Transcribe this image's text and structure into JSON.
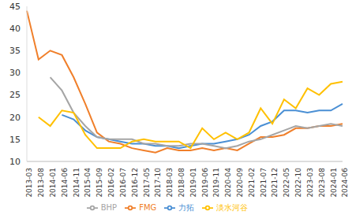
{
  "chart_data": {
    "type": "line",
    "categories": [
      "2013-03",
      "2013-08",
      "2014-01",
      "2014-06",
      "2014-11",
      "2015-04",
      "2015-09",
      "2016-02",
      "2016-07",
      "2016-12",
      "2017-05",
      "2017-10",
      "2018-03",
      "2018-08",
      "2019-01",
      "2019-06",
      "2019-11",
      "2020-04",
      "2020-09",
      "2021-02",
      "2021-07",
      "2021-12",
      "2022-05",
      "2022-10",
      "2023-03",
      "2023-08",
      "2024-01",
      "2024-06"
    ],
    "series": [
      {
        "name": "力拓",
        "color": "#4a8fd4",
        "values": [
          null,
          null,
          null,
          20.5,
          19.5,
          17,
          15.5,
          15,
          14.5,
          14,
          14,
          13.5,
          13.5,
          13,
          13.5,
          14,
          14,
          14.5,
          15,
          16,
          18,
          19,
          21.5,
          21.5,
          21,
          21.5,
          21.5,
          23
        ]
      },
      {
        "name": "FMG",
        "color": "#f07f2a",
        "values": [
          44,
          33,
          35,
          34,
          29,
          23,
          16.5,
          14.5,
          14,
          13,
          12.5,
          12,
          13,
          12.5,
          12.5,
          13,
          12.5,
          13,
          12.5,
          14,
          15.5,
          15.5,
          16,
          17.5,
          17.5,
          18,
          18,
          18.5
        ]
      },
      {
        "name": "BHP",
        "color": "#a5a5a5",
        "values": [
          null,
          null,
          29,
          26,
          21,
          18,
          15.5,
          15,
          15,
          15,
          14,
          14,
          13.5,
          13.5,
          14,
          14,
          13.5,
          13,
          13.5,
          14.5,
          15,
          16,
          17,
          18,
          17.5,
          18,
          18.5,
          18
        ]
      },
      {
        "name": "淡水河谷",
        "color": "#ffc000",
        "values": [
          null,
          20,
          18,
          21.5,
          21,
          16,
          13,
          13,
          13,
          14.5,
          15,
          14.5,
          14.5,
          14.5,
          13,
          17.5,
          15,
          16.5,
          15,
          16.5,
          22,
          18.5,
          24,
          22,
          26.5,
          25,
          27.5,
          28
        ]
      }
    ],
    "ylim": [
      10,
      45
    ],
    "yticks": [
      10,
      15,
      20,
      25,
      30,
      35,
      40,
      45
    ],
    "grid": false,
    "legend": "bottom"
  }
}
